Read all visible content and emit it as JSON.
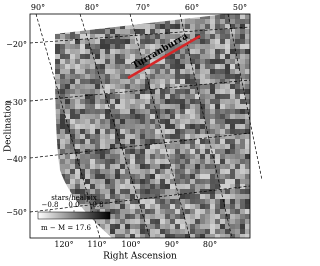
{
  "chart_data": {
    "type": "map",
    "xlabel": "Right Ascension",
    "ylabel": "Declination",
    "top_ticks": [
      "90°",
      "80°",
      "70°",
      "60°",
      "50°"
    ],
    "bottom_ticks": [
      "120°",
      "110°",
      "100°",
      "90°",
      "80°"
    ],
    "left_ticks": [
      "−20°",
      "−30°",
      "−40°",
      "−50°"
    ],
    "annotation": "Turranburra",
    "annotation_color": "#d62728",
    "colorbar": {
      "label": "stars/healpix",
      "lim": [
        -1.2,
        1.2
      ],
      "ticks": [
        {
          "value": -0.8,
          "label": "−0.8"
        },
        {
          "value": 0,
          "label": "0.0"
        },
        {
          "value": 0.8,
          "label": "0.8"
        }
      ]
    },
    "distance_modulus": "m − M = 17.6"
  }
}
